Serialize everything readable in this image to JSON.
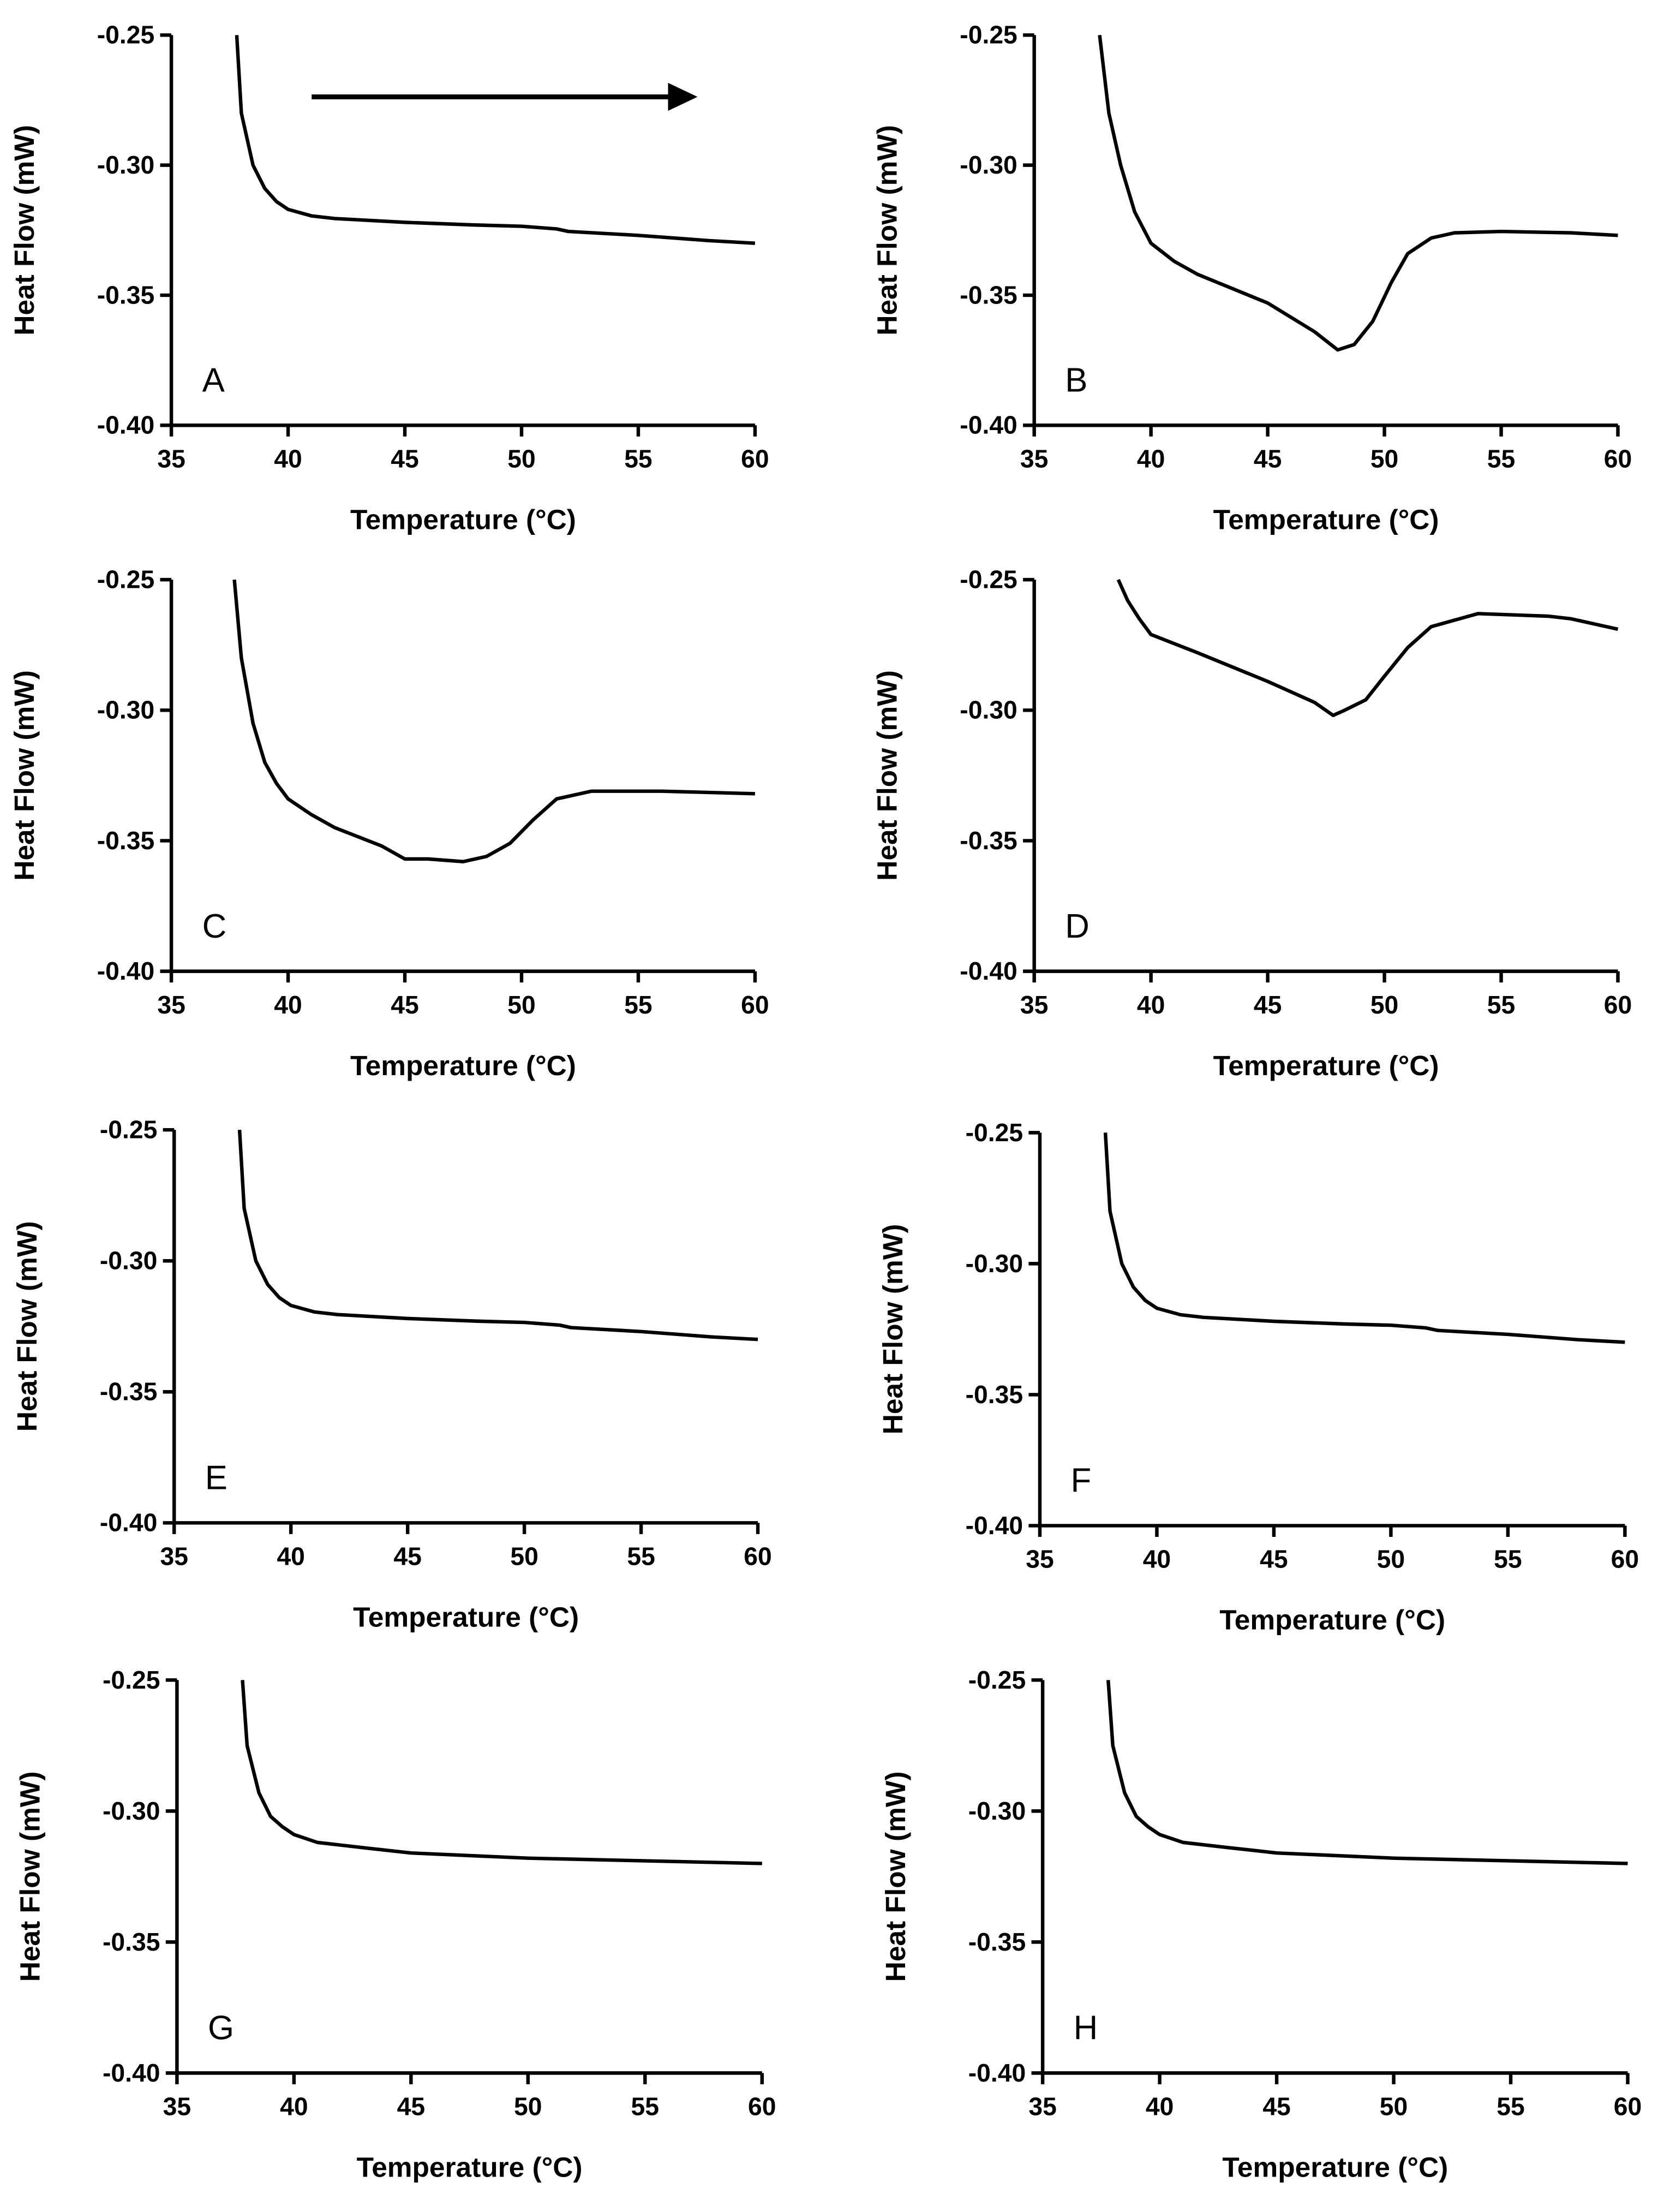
{
  "chart_data": [
    {
      "type": "line",
      "panel": "A",
      "xlabel": "Temperature (°C)",
      "ylabel": "Heat Flow (mW)",
      "xlim": [
        35,
        60
      ],
      "ylim": [
        -0.4,
        -0.25
      ],
      "xticks": [
        "35",
        "40",
        "45",
        "50",
        "55",
        "60"
      ],
      "yticks": [
        "-0.25",
        "-0.30",
        "-0.35",
        "-0.40"
      ],
      "arrow": "heating-direction",
      "x": [
        37.8,
        38,
        38.5,
        39,
        39.5,
        40,
        41,
        42,
        45,
        48,
        50,
        51.5,
        52,
        55,
        58,
        60
      ],
      "y": [
        -0.25,
        -0.28,
        -0.3,
        -0.309,
        -0.314,
        -0.317,
        -0.3195,
        -0.3205,
        -0.322,
        -0.323,
        -0.3235,
        -0.3245,
        -0.3255,
        -0.327,
        -0.329,
        -0.33
      ]
    },
    {
      "type": "line",
      "panel": "B",
      "xlabel": "Temperature (°C)",
      "ylabel": "Heat Flow (mW)",
      "xlim": [
        35,
        60
      ],
      "ylim": [
        -0.4,
        -0.25
      ],
      "xticks": [
        "35",
        "40",
        "45",
        "50",
        "55",
        "60"
      ],
      "yticks": [
        "-0.25",
        "-0.30",
        "-0.35",
        "-0.40"
      ],
      "x": [
        37.8,
        38.2,
        38.7,
        39.3,
        40,
        41,
        42,
        45,
        47,
        48,
        48.7,
        49.5,
        50.3,
        51,
        52,
        53,
        55,
        58,
        60
      ],
      "y": [
        -0.25,
        -0.28,
        -0.3,
        -0.318,
        -0.33,
        -0.337,
        -0.342,
        -0.353,
        -0.364,
        -0.371,
        -0.369,
        -0.36,
        -0.345,
        -0.334,
        -0.328,
        -0.326,
        -0.3255,
        -0.326,
        -0.327
      ]
    },
    {
      "type": "line",
      "panel": "C",
      "xlabel": "Temperature (°C)",
      "ylabel": "Heat Flow (mW)",
      "xlim": [
        35,
        60
      ],
      "ylim": [
        -0.4,
        -0.25
      ],
      "xticks": [
        "35",
        "40",
        "45",
        "50",
        "55",
        "60"
      ],
      "yticks": [
        "-0.25",
        "-0.30",
        "-0.35",
        "-0.40"
      ],
      "x": [
        37.7,
        38,
        38.5,
        39,
        39.5,
        40,
        41,
        42,
        44,
        45,
        46,
        47.5,
        48.5,
        49.5,
        50.5,
        51.5,
        53,
        56,
        60
      ],
      "y": [
        -0.25,
        -0.28,
        -0.305,
        -0.32,
        -0.328,
        -0.334,
        -0.34,
        -0.345,
        -0.352,
        -0.357,
        -0.357,
        -0.358,
        -0.356,
        -0.351,
        -0.342,
        -0.334,
        -0.331,
        -0.331,
        -0.332
      ]
    },
    {
      "type": "line",
      "panel": "D",
      "xlabel": "Temperature (°C)",
      "ylabel": "Heat Flow (mW)",
      "xlim": [
        35,
        60
      ],
      "ylim": [
        -0.4,
        -0.25
      ],
      "xticks": [
        "35",
        "40",
        "45",
        "50",
        "55",
        "60"
      ],
      "yticks": [
        "-0.25",
        "-0.30",
        "-0.35",
        "-0.40"
      ],
      "x": [
        38.6,
        39,
        39.5,
        40,
        42,
        45,
        47,
        47.8,
        48.3,
        49.2,
        50,
        51,
        52,
        54,
        57,
        58,
        60
      ],
      "y": [
        -0.25,
        -0.258,
        -0.265,
        -0.271,
        -0.278,
        -0.289,
        -0.297,
        -0.302,
        -0.3,
        -0.296,
        -0.287,
        -0.276,
        -0.268,
        -0.263,
        -0.264,
        -0.265,
        -0.269
      ]
    },
    {
      "type": "line",
      "panel": "E",
      "xlabel": "Temperature (°C)",
      "ylabel": "Heat Flow (mW)",
      "xlim": [
        35,
        60
      ],
      "ylim": [
        -0.4,
        -0.25
      ],
      "xticks": [
        "35",
        "40",
        "45",
        "50",
        "55",
        "60"
      ],
      "yticks": [
        "-0.25",
        "-0.30",
        "-0.35",
        "-0.40"
      ],
      "x": [
        37.8,
        38,
        38.5,
        39,
        39.5,
        40,
        41,
        42,
        45,
        48,
        50,
        51.5,
        52,
        55,
        58,
        60
      ],
      "y": [
        -0.25,
        -0.28,
        -0.3,
        -0.309,
        -0.314,
        -0.317,
        -0.3195,
        -0.3205,
        -0.322,
        -0.323,
        -0.3235,
        -0.3245,
        -0.3255,
        -0.327,
        -0.329,
        -0.33
      ]
    },
    {
      "type": "line",
      "panel": "F",
      "xlabel": "Temperature (°C)",
      "ylabel": "Heat Flow (mW)",
      "xlim": [
        35,
        60
      ],
      "ylim": [
        -0.4,
        -0.25
      ],
      "xticks": [
        "35",
        "40",
        "45",
        "50",
        "55",
        "60"
      ],
      "yticks": [
        "-0.25",
        "-0.30",
        "-0.35",
        "-0.40"
      ],
      "x": [
        37.8,
        38,
        38.5,
        39,
        39.5,
        40,
        41,
        42,
        45,
        48,
        50,
        51.5,
        52,
        55,
        58,
        60
      ],
      "y": [
        -0.25,
        -0.28,
        -0.3,
        -0.309,
        -0.314,
        -0.317,
        -0.3195,
        -0.3205,
        -0.322,
        -0.323,
        -0.3235,
        -0.3245,
        -0.3255,
        -0.327,
        -0.329,
        -0.33
      ]
    },
    {
      "type": "line",
      "panel": "G",
      "xlabel": "Temperature (°C)",
      "ylabel": "Heat Flow (mW)",
      "xlim": [
        35,
        60
      ],
      "ylim": [
        -0.4,
        -0.25
      ],
      "xticks": [
        "35",
        "40",
        "45",
        "50",
        "55",
        "60"
      ],
      "yticks": [
        "-0.25",
        "-0.30",
        "-0.35",
        "-0.40"
      ],
      "x": [
        37.8,
        38,
        38.5,
        39,
        39.5,
        40,
        41,
        43,
        45,
        50,
        55,
        60
      ],
      "y": [
        -0.25,
        -0.275,
        -0.293,
        -0.302,
        -0.306,
        -0.309,
        -0.312,
        -0.314,
        -0.316,
        -0.318,
        -0.319,
        -0.32
      ]
    },
    {
      "type": "line",
      "panel": "H",
      "xlabel": "Temperature (°C)",
      "ylabel": "Heat Flow (mW)",
      "xlim": [
        35,
        60
      ],
      "ylim": [
        -0.4,
        -0.25
      ],
      "xticks": [
        "35",
        "40",
        "45",
        "50",
        "55",
        "60"
      ],
      "yticks": [
        "-0.25",
        "-0.30",
        "-0.35",
        "-0.40"
      ],
      "x": [
        37.8,
        38,
        38.5,
        39,
        39.5,
        40,
        41,
        43,
        45,
        50,
        55,
        60
      ],
      "y": [
        -0.25,
        -0.275,
        -0.293,
        -0.302,
        -0.306,
        -0.309,
        -0.312,
        -0.314,
        -0.316,
        -0.318,
        -0.319,
        -0.32
      ]
    }
  ]
}
